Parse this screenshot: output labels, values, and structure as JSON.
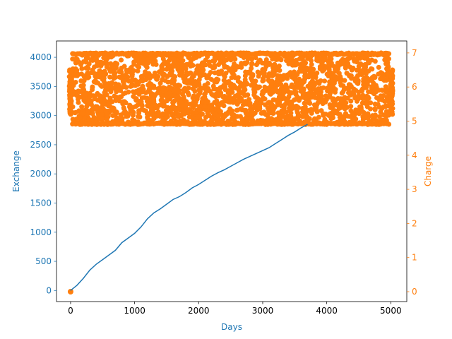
{
  "chart_data": {
    "type": "line",
    "title": "",
    "xlabel": "Days",
    "ylabel_left": "Exchange",
    "ylabel_right": "Charge",
    "xlim": [
      -220,
      5250
    ],
    "ylim_left": [
      -190,
      4280
    ],
    "ylim_right": [
      -0.29,
      7.35
    ],
    "x_ticks": [
      0,
      1000,
      2000,
      3000,
      4000,
      5000
    ],
    "y_left_ticks": [
      0,
      500,
      1000,
      1500,
      2000,
      2500,
      3000,
      3500,
      4000
    ],
    "y_right_ticks": [
      0,
      1,
      2,
      3,
      4,
      5,
      6,
      7
    ],
    "grid": false,
    "legend": "none",
    "colors": {
      "exchange": "#1f77b4",
      "charge": "#ff7f0e",
      "axis": "#000000"
    },
    "series": [
      {
        "axis": "left",
        "kind": "line",
        "x": [
          0,
          100,
          200,
          300,
          400,
          500,
          600,
          700,
          800,
          900,
          1000,
          1100,
          1200,
          1300,
          1400,
          1500,
          1600,
          1700,
          1800,
          1900,
          2000,
          2100,
          2200,
          2300,
          2400,
          2500,
          2600,
          2700,
          2800,
          2900,
          3000,
          3100,
          3200,
          3300,
          3400,
          3500,
          3600,
          3700
        ],
        "values": [
          0,
          90,
          210,
          350,
          450,
          530,
          610,
          690,
          820,
          900,
          980,
          1090,
          1230,
          1330,
          1400,
          1480,
          1560,
          1610,
          1680,
          1760,
          1820,
          1890,
          1960,
          2020,
          2070,
          2130,
          2190,
          2250,
          2300,
          2350,
          2400,
          2450,
          2520,
          2590,
          2660,
          2720,
          2790,
          2850
        ]
      },
      {
        "axis": "right",
        "kind": "scatter",
        "x_range": [
          0,
          5000
        ],
        "y_range": [
          0,
          7
        ],
        "band_y_range": [
          4.9,
          7.0
        ],
        "note": ""
      }
    ]
  }
}
